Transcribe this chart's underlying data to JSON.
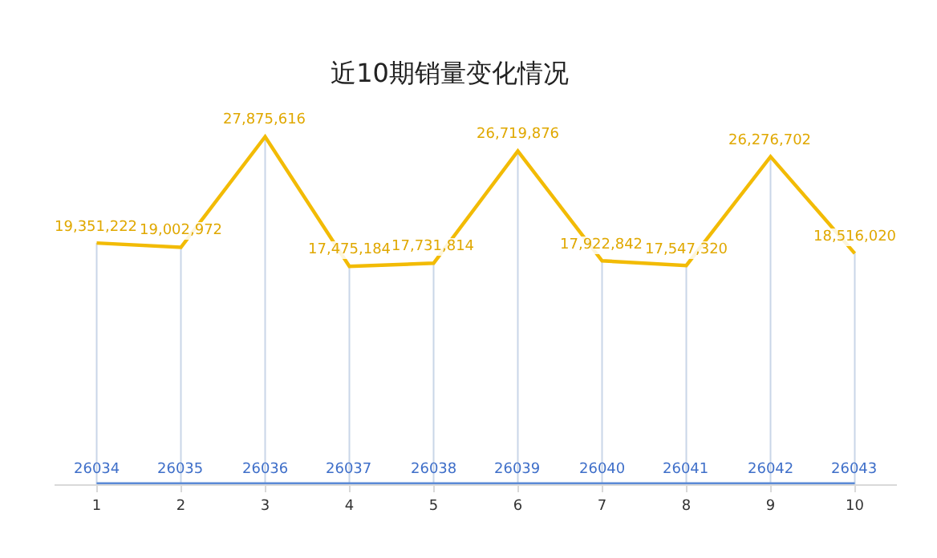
{
  "chart_data": {
    "type": "line",
    "title": "近10期销量变化情况",
    "categories": [
      "1",
      "2",
      "3",
      "4",
      "5",
      "6",
      "7",
      "8",
      "9",
      "10"
    ],
    "series": [
      {
        "color": "#f2bb05",
        "values": [
          19351222,
          19002972,
          27875616,
          17475184,
          17731814,
          26719876,
          17922842,
          17547320,
          26276702,
          18516020
        ],
        "value_labels": [
          "19,351,222",
          "19,002,972",
          "27,875,616",
          "17,475,184",
          "17,731,814",
          "26,719,876",
          "17,922,842",
          "17,547,320",
          "26,276,702",
          "18,516,020"
        ]
      },
      {
        "color": "#5b8ad6",
        "values": [
          26034,
          26035,
          26036,
          26037,
          26038,
          26039,
          26040,
          26041,
          26042,
          26043
        ],
        "value_labels": [
          "26034",
          "26035",
          "26036",
          "26037",
          "26038",
          "26039",
          "26040",
          "26041",
          "26042",
          "26043"
        ]
      }
    ],
    "tick_labels": "x",
    "grid": "x",
    "marker": "none",
    "line_style": "solid"
  }
}
